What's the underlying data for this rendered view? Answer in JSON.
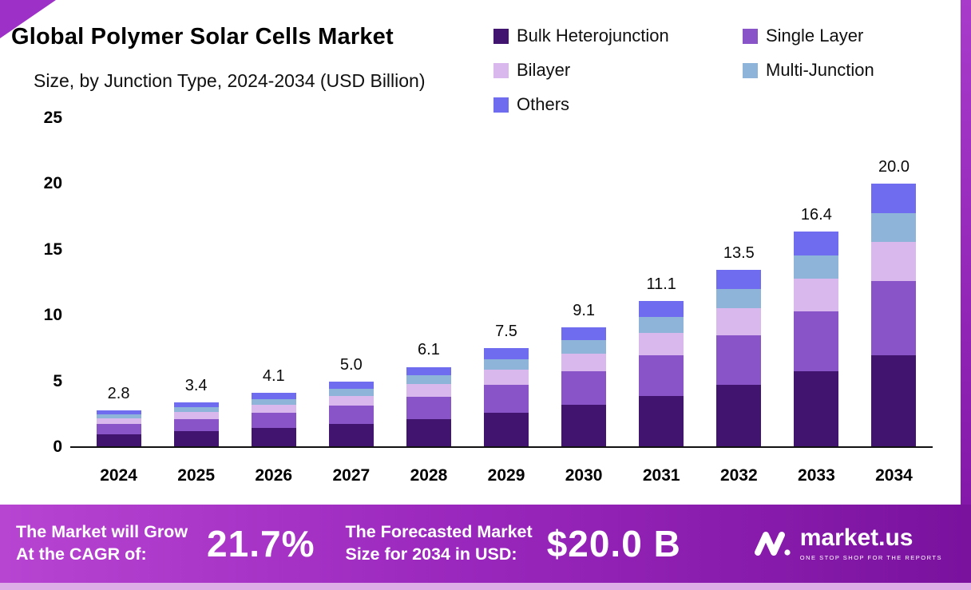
{
  "header": {
    "title": "Global Polymer Solar Cells Market",
    "subtitle": "Size, by Junction Type, 2024-2034 (USD Billion)"
  },
  "chart_data": {
    "type": "bar",
    "stacked": true,
    "title": "Global Polymer Solar Cells Market Size, by Junction Type, 2024-2034 (USD Billion)",
    "categories": [
      "2024",
      "2025",
      "2026",
      "2027",
      "2028",
      "2029",
      "2030",
      "2031",
      "2032",
      "2033",
      "2034"
    ],
    "totals": [
      2.8,
      3.4,
      4.1,
      5.0,
      6.1,
      7.5,
      9.1,
      11.1,
      13.5,
      16.4,
      20.0
    ],
    "series": [
      {
        "name": "Bulk Heterojunction",
        "color": "#411470",
        "values": [
          0.98,
          1.19,
          1.44,
          1.75,
          2.14,
          2.63,
          3.19,
          3.89,
          4.73,
          5.74,
          7.0
        ]
      },
      {
        "name": "Single Layer",
        "color": "#8a54c9",
        "values": [
          0.78,
          0.95,
          1.15,
          1.4,
          1.71,
          2.1,
          2.55,
          3.11,
          3.78,
          4.59,
          5.6
        ]
      },
      {
        "name": "Bilayer",
        "color": "#d9b8ee",
        "values": [
          0.42,
          0.51,
          0.62,
          0.75,
          0.92,
          1.13,
          1.37,
          1.67,
          2.03,
          2.46,
          3.0
        ]
      },
      {
        "name": "Multi-Junction",
        "color": "#8fb4da",
        "values": [
          0.31,
          0.37,
          0.45,
          0.55,
          0.67,
          0.83,
          1.0,
          1.22,
          1.49,
          1.8,
          2.2
        ]
      },
      {
        "name": "Others",
        "color": "#6f6cf0",
        "values": [
          0.31,
          0.38,
          0.44,
          0.55,
          0.66,
          0.81,
          0.99,
          1.21,
          1.47,
          1.81,
          2.2
        ]
      }
    ],
    "ylim": [
      0,
      25
    ],
    "yticks": [
      0,
      5,
      10,
      15,
      20,
      25
    ],
    "xlabel": "",
    "ylabel": "",
    "grid": false,
    "legend_position": "top-right"
  },
  "banner": {
    "cagr_label_line1": "The Market will Grow",
    "cagr_label_line2": "At the CAGR of:",
    "cagr_value": "21.7%",
    "forecast_label_line1": "The Forecasted Market",
    "forecast_label_line2": "Size for 2034 in USD:",
    "forecast_value": "$20.0 B",
    "logo_text": "market.us",
    "logo_tagline": "ONE STOP SHOP FOR THE REPORTS"
  },
  "colors": {
    "banner_gradient_start": "#b844d2",
    "banner_gradient_end": "#7a129e",
    "banner_bottom_strip": "#ddade8",
    "corner_decoration": "#9d30c6",
    "text": "#000000"
  }
}
